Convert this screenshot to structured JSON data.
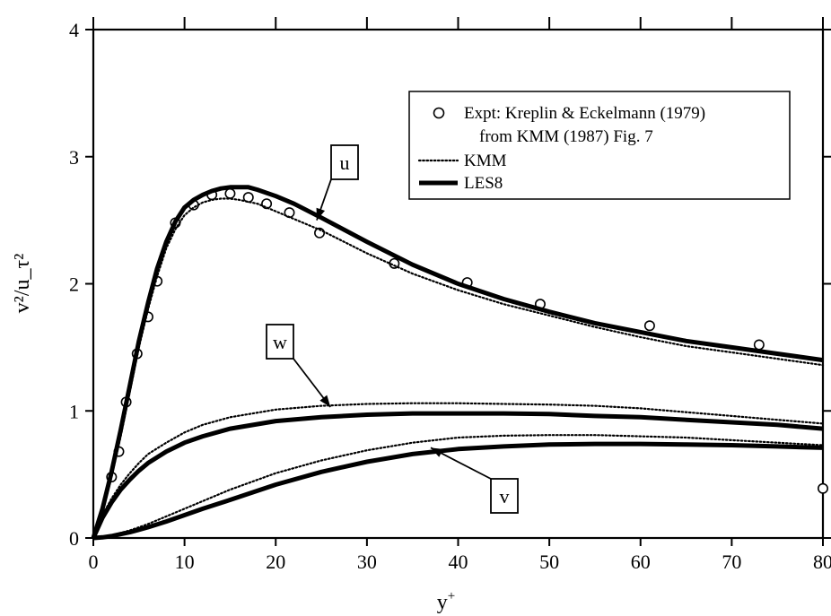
{
  "chart_data": {
    "type": "line",
    "xlim": [
      0,
      80
    ],
    "ylim": [
      0,
      4
    ],
    "x_ticks": [
      "0",
      "10",
      "20",
      "30",
      "40",
      "50",
      "60",
      "70",
      "80"
    ],
    "y_ticks": [
      "0",
      "1",
      "2",
      "3",
      "4"
    ],
    "xlabel_base": "y",
    "xlabel_sup": "+",
    "ylabel": "v²/u_τ²",
    "grid": false,
    "legend_position": "top-right",
    "legend": [
      {
        "key": "expt",
        "marker": "circle",
        "label": "Expt: Kreplin & Eckelmann (1979)"
      },
      {
        "key": "expt_note",
        "marker": "none",
        "label": "from  KMM (1987) Fig. 7"
      },
      {
        "key": "kmm",
        "marker": "dotted-line",
        "label": "KMM"
      },
      {
        "key": "les8",
        "marker": "solid-line",
        "label": "LES8"
      }
    ],
    "callouts": [
      {
        "key": "u",
        "label": "u",
        "points_to": [
          24.5,
          2.5
        ]
      },
      {
        "key": "w",
        "label": "w",
        "points_to": [
          26,
          1.03
        ]
      },
      {
        "key": "v",
        "label": "v",
        "points_to": [
          37,
          0.71
        ]
      }
    ],
    "series": [
      {
        "key": "expt",
        "component": "u",
        "style": "marker",
        "x": [
          2,
          2.8,
          3.6,
          4.8,
          6,
          7,
          9,
          11,
          13,
          15,
          17,
          19,
          21.5,
          24.8,
          33,
          41,
          49,
          61,
          73,
          80
        ],
        "y": [
          0.48,
          0.68,
          1.07,
          1.45,
          1.74,
          2.02,
          2.48,
          2.62,
          2.7,
          2.71,
          2.68,
          2.63,
          2.56,
          2.4,
          2.16,
          2.01,
          1.84,
          1.67,
          1.52,
          0.39
        ]
      },
      {
        "key": "les8",
        "component": "u",
        "style": "solid",
        "x": [
          0,
          1,
          2,
          3,
          4,
          5,
          6,
          7,
          8,
          9,
          10,
          11,
          12,
          13,
          14,
          15,
          16,
          17,
          18,
          20,
          22,
          25,
          30,
          35,
          40,
          45,
          50,
          55,
          60,
          65,
          70,
          75,
          80
        ],
        "y": [
          0,
          0.23,
          0.52,
          0.85,
          1.2,
          1.55,
          1.85,
          2.12,
          2.33,
          2.49,
          2.6,
          2.66,
          2.7,
          2.73,
          2.75,
          2.76,
          2.76,
          2.76,
          2.74,
          2.69,
          2.63,
          2.52,
          2.33,
          2.15,
          2.0,
          1.88,
          1.78,
          1.69,
          1.62,
          1.55,
          1.5,
          1.45,
          1.4
        ]
      },
      {
        "key": "kmm",
        "component": "u",
        "style": "dotted",
        "x": [
          0,
          1,
          2,
          3,
          4,
          5,
          6,
          7,
          8,
          9,
          10,
          11,
          12,
          13,
          14,
          15,
          16,
          18,
          20,
          22,
          25,
          30,
          35,
          40,
          45,
          50,
          55,
          60,
          65,
          70,
          75,
          80
        ],
        "y": [
          0,
          0.2,
          0.48,
          0.8,
          1.15,
          1.5,
          1.8,
          2.06,
          2.28,
          2.43,
          2.54,
          2.6,
          2.64,
          2.66,
          2.67,
          2.67,
          2.66,
          2.63,
          2.57,
          2.51,
          2.42,
          2.24,
          2.08,
          1.95,
          1.84,
          1.75,
          1.66,
          1.58,
          1.51,
          1.46,
          1.41,
          1.36
        ]
      },
      {
        "key": "les8",
        "component": "w",
        "style": "solid",
        "x": [
          0,
          1,
          2,
          3,
          4,
          5,
          6,
          8,
          10,
          12,
          15,
          20,
          25,
          30,
          35,
          40,
          45,
          50,
          55,
          60,
          65,
          70,
          75,
          80
        ],
        "y": [
          0,
          0.16,
          0.28,
          0.38,
          0.46,
          0.53,
          0.59,
          0.68,
          0.75,
          0.8,
          0.86,
          0.92,
          0.95,
          0.97,
          0.98,
          0.98,
          0.98,
          0.975,
          0.96,
          0.95,
          0.93,
          0.91,
          0.89,
          0.86
        ]
      },
      {
        "key": "kmm",
        "component": "w",
        "style": "dotted",
        "x": [
          0,
          1,
          2,
          3,
          4,
          5,
          6,
          8,
          10,
          12,
          15,
          20,
          25,
          30,
          35,
          40,
          45,
          50,
          55,
          60,
          65,
          70,
          75,
          80
        ],
        "y": [
          0,
          0.18,
          0.31,
          0.42,
          0.51,
          0.59,
          0.66,
          0.75,
          0.83,
          0.89,
          0.95,
          1.01,
          1.04,
          1.055,
          1.06,
          1.06,
          1.055,
          1.05,
          1.04,
          1.02,
          0.99,
          0.96,
          0.93,
          0.9
        ]
      },
      {
        "key": "les8",
        "component": "v",
        "style": "solid",
        "x": [
          0,
          1,
          2,
          3,
          4,
          5,
          6,
          8,
          10,
          12,
          15,
          20,
          25,
          30,
          35,
          40,
          45,
          50,
          55,
          60,
          65,
          70,
          75,
          80
        ],
        "y": [
          0,
          0.005,
          0.015,
          0.03,
          0.045,
          0.065,
          0.085,
          0.13,
          0.18,
          0.23,
          0.3,
          0.42,
          0.52,
          0.6,
          0.66,
          0.7,
          0.72,
          0.735,
          0.74,
          0.74,
          0.735,
          0.73,
          0.72,
          0.71
        ]
      },
      {
        "key": "kmm",
        "component": "v",
        "style": "dotted",
        "x": [
          0,
          1,
          2,
          3,
          4,
          5,
          6,
          8,
          10,
          12,
          15,
          20,
          25,
          30,
          35,
          40,
          45,
          50,
          55,
          60,
          65,
          70,
          75,
          80
        ],
        "y": [
          0,
          0.007,
          0.02,
          0.04,
          0.06,
          0.085,
          0.11,
          0.17,
          0.23,
          0.29,
          0.38,
          0.51,
          0.61,
          0.69,
          0.75,
          0.79,
          0.805,
          0.81,
          0.81,
          0.8,
          0.79,
          0.77,
          0.75,
          0.73
        ]
      }
    ]
  }
}
